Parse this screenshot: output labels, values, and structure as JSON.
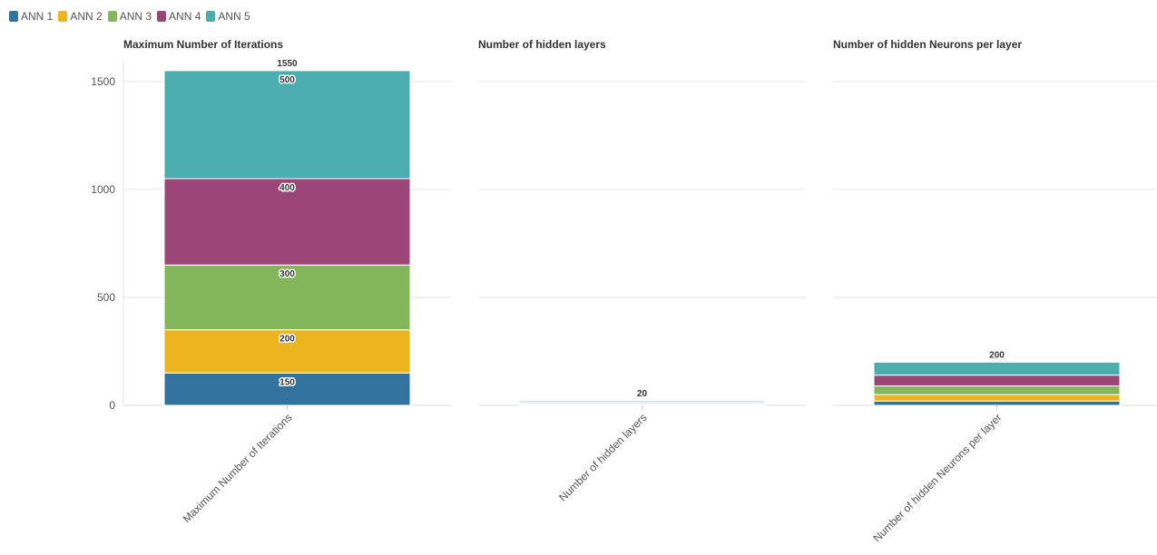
{
  "legend": {
    "items": [
      {
        "label": "ANN 1",
        "color": "#31739e"
      },
      {
        "label": "ANN 2",
        "color": "#ecb41f"
      },
      {
        "label": "ANN 3",
        "color": "#83b55a"
      },
      {
        "label": "ANN 4",
        "color": "#9c4677"
      },
      {
        "label": "ANN 5",
        "color": "#4aaeb0"
      }
    ]
  },
  "chart_data": {
    "type": "bar",
    "stacked": true,
    "shared_y_axis": true,
    "yticks": [
      0,
      500,
      1000,
      1500
    ],
    "ylim": [
      0,
      1600
    ],
    "grid": true,
    "legend_position": "top-left",
    "panels": [
      {
        "title": "Maximum Number of Iterations",
        "category": "Maximum Number of Iterations",
        "series": [
          {
            "name": "ANN 1",
            "value": 150,
            "label": "150"
          },
          {
            "name": "ANN 2",
            "value": 200,
            "label": "200"
          },
          {
            "name": "ANN 3",
            "value": 300,
            "label": "300"
          },
          {
            "name": "ANN 4",
            "value": 400,
            "label": "400"
          },
          {
            "name": "ANN 5",
            "value": 500,
            "label": "500"
          }
        ],
        "total_label": "1550"
      },
      {
        "title": "Number of hidden layers",
        "category": "Number of hidden layers",
        "series": [
          {
            "name": "ANN 1",
            "value": 2
          },
          {
            "name": "ANN 2",
            "value": 3
          },
          {
            "name": "ANN 3",
            "value": 4
          },
          {
            "name": "ANN 4",
            "value": 5
          },
          {
            "name": "ANN 5",
            "value": 6
          }
        ],
        "total_label": "20"
      },
      {
        "title": "Number of hidden Neurons per layer",
        "category": "Number of hidden Neurons per layer",
        "series": [
          {
            "name": "ANN 1",
            "value": 20
          },
          {
            "name": "ANN 2",
            "value": 30
          },
          {
            "name": "ANN 3",
            "value": 40
          },
          {
            "name": "ANN 4",
            "value": 50
          },
          {
            "name": "ANN 5",
            "value": 60
          }
        ],
        "total_label": "200"
      }
    ]
  }
}
